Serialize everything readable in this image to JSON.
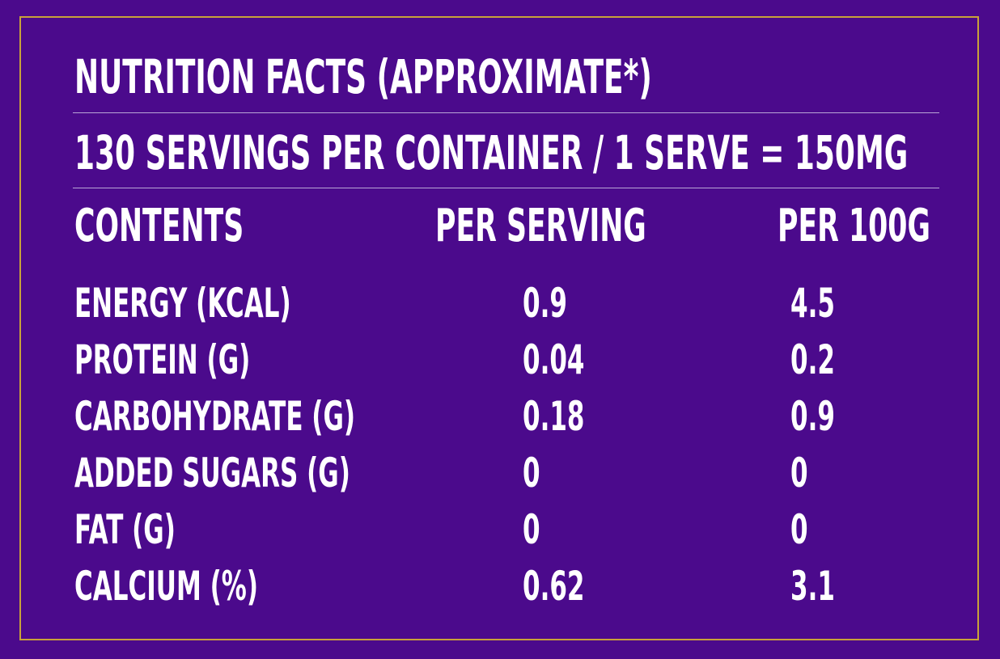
{
  "title": "NUTRITION FACTS (APPROXIMATE*)",
  "servings_line": "130 SERVINGS PER CONTAINER / 1 SERVE = 150MG",
  "headers": {
    "contents": "CONTENTS",
    "per_serving": "PER SERVING",
    "per_100g": "PER 100G"
  },
  "rows": [
    {
      "name": "ENERGY (KCAL)",
      "per_serving": "0.9",
      "per_100g": "4.5"
    },
    {
      "name": "PROTEIN (G)",
      "per_serving": "0.04",
      "per_100g": "0.2"
    },
    {
      "name": "CARBOHYDRATE (G)",
      "per_serving": "0.18",
      "per_100g": "0.9"
    },
    {
      "name": "ADDED SUGARS (G)",
      "per_serving": "0",
      "per_100g": "0"
    },
    {
      "name": "FAT (G)",
      "per_serving": "0",
      "per_100g": "0"
    },
    {
      "name": "CALCIUM (%)",
      "per_serving": "0.62",
      "per_100g": "3.1"
    }
  ],
  "colors": {
    "background": "#4B0A8C",
    "border": "#C9A23A",
    "text": "#FFFFFF",
    "rule": "#B9A6D6"
  }
}
